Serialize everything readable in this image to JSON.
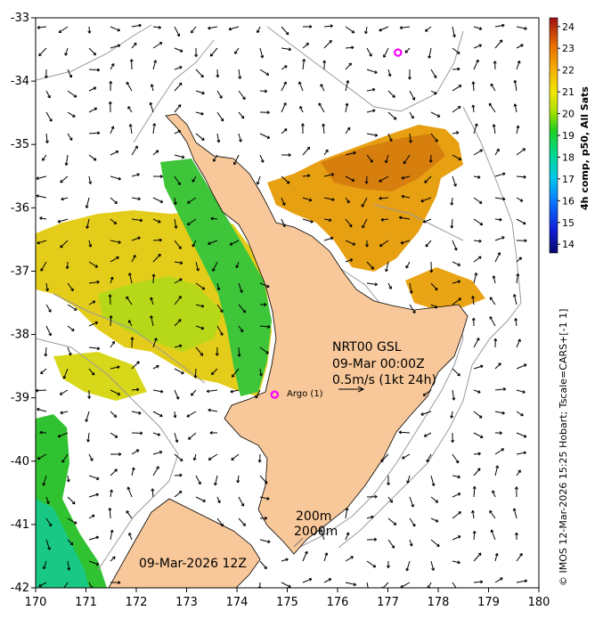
{
  "map": {
    "x_ticks": [
      "170",
      "171",
      "172",
      "173",
      "174",
      "175",
      "176",
      "177",
      "178",
      "179",
      "180"
    ],
    "y_ticks": [
      "-33",
      "-34",
      "-35",
      "-36",
      "-37",
      "-38",
      "-39",
      "-40",
      "-41",
      "-42"
    ],
    "lon_range": [
      170,
      180
    ],
    "lat_range": [
      -42,
      -33
    ],
    "land_color": "#f8c89a",
    "contour_color": "#9a9a9a",
    "arrow_color": "#000000"
  },
  "annotations": {
    "product_line1": "NRT00 GSL",
    "product_line2": "09-Mar 00:00Z",
    "scale_label": "0.5m/s (1kt 24h)",
    "argo_label": "Argo (1)",
    "depth_200": "200m",
    "depth_2000": "2000m",
    "date_label": "09-Mar-2026 12Z"
  },
  "argo_floats": [
    {
      "lon": 174.75,
      "lat": -38.95
    },
    {
      "lon": 177.2,
      "lat": -33.55
    }
  ],
  "colorbar": {
    "label": "4h comp, p50, All Sats",
    "ticks": [
      "14",
      "15",
      "16",
      "17",
      "18",
      "19",
      "20",
      "21",
      "22",
      "23",
      "24"
    ],
    "range": [
      13.6,
      24.4
    ]
  },
  "credit": "© IMOS 12-Mar-2026 15:25 Hobart; Tscale=CARS+[-1 1]"
}
